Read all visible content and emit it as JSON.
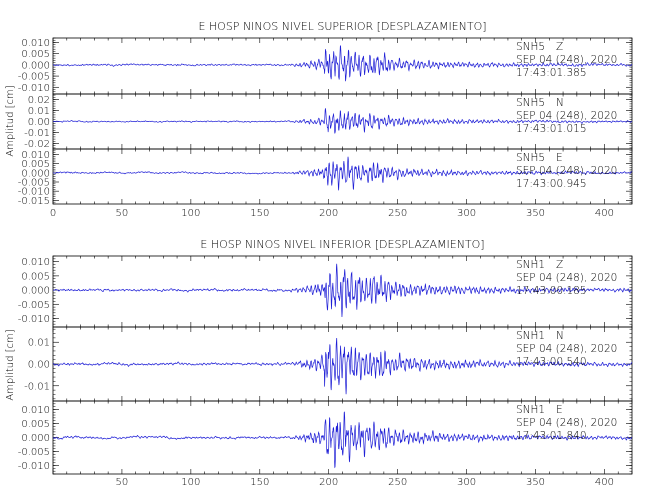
{
  "chart_data": [
    {
      "type": "line",
      "title": "E HOSP NINOS NIVEL SUPERIOR [DESPLAZAMIENTO]",
      "ylabel": "Amplitud [cm]",
      "xlim": [
        0,
        420
      ],
      "x_ticks": [
        "0",
        "50",
        "100",
        "150",
        "200",
        "250",
        "300",
        "350",
        "400"
      ],
      "traces": [
        {
          "station": "SNH5",
          "component": "Z",
          "date": "SEP 04 (248), 2020",
          "time": "17:43:01.385",
          "ylim": [
            -0.013,
            0.012
          ],
          "y_ticks": [
            {
              "v": 0.01,
              "t": "0.010"
            },
            {
              "v": 0.005,
              "t": "0.005"
            },
            {
              "v": 0.0,
              "t": "0.000"
            },
            {
              "v": -0.005,
              "t": "-0.005"
            },
            {
              "v": -0.01,
              "t": "-0.010"
            }
          ],
          "peak": 0.01,
          "seed": 11
        },
        {
          "station": "SNH5",
          "component": "N",
          "date": "SEP 04 (248), 2020",
          "time": "17:43:01.015",
          "ylim": [
            -0.025,
            0.025
          ],
          "y_ticks": [
            {
              "v": 0.02,
              "t": "0.02"
            },
            {
              "v": 0.01,
              "t": "0.01"
            },
            {
              "v": 0.0,
              "t": "0.00"
            },
            {
              "v": -0.01,
              "t": "-0.01"
            },
            {
              "v": -0.02,
              "t": "-0.02"
            }
          ],
          "peak": 0.015,
          "seed": 23
        },
        {
          "station": "SNH5",
          "component": "E",
          "date": "SEP 04 (248), 2020",
          "time": "17:43:00.945",
          "ylim": [
            -0.017,
            0.013
          ],
          "y_ticks": [
            {
              "v": 0.01,
              "t": "0.010"
            },
            {
              "v": 0.005,
              "t": "0.005"
            },
            {
              "v": 0.0,
              "t": "0.000"
            },
            {
              "v": -0.005,
              "t": "-0.005"
            },
            {
              "v": -0.01,
              "t": "-0.010"
            },
            {
              "v": -0.015,
              "t": "-0.015"
            }
          ],
          "peak": 0.011,
          "seed": 37
        }
      ]
    },
    {
      "type": "line",
      "title": "E HOSP NINOS NIVEL INFERIOR [DESPLAZAMIENTO]",
      "ylabel": "Amplitud [cm]",
      "xlim": [
        0,
        420
      ],
      "x_ticks": [
        "50",
        "100",
        "150",
        "200",
        "250",
        "300",
        "350",
        "400"
      ],
      "traces": [
        {
          "station": "SNH1",
          "component": "Z",
          "date": "SEP 04 (248), 2020",
          "time": "17:43:00.185",
          "ylim": [
            -0.013,
            0.012
          ],
          "y_ticks": [
            {
              "v": 0.01,
              "t": "0.010"
            },
            {
              "v": 0.005,
              "t": "0.005"
            },
            {
              "v": 0.0,
              "t": "0.000"
            },
            {
              "v": -0.005,
              "t": "-0.005"
            },
            {
              "v": -0.01,
              "t": "-0.010"
            }
          ],
          "peak": 0.011,
          "seed": 41
        },
        {
          "station": "SNH1",
          "component": "N",
          "date": "SEP 04 (248), 2020",
          "time": "17:43:00.540",
          "ylim": [
            -0.017,
            0.017
          ],
          "y_ticks": [
            {
              "v": 0.01,
              "t": "0.01"
            },
            {
              "v": 0.0,
              "t": "0.00"
            },
            {
              "v": -0.01,
              "t": "-0.01"
            }
          ],
          "peak": 0.015,
          "seed": 53
        },
        {
          "station": "SNH1",
          "component": "E",
          "date": "SEP 04 (248), 2020",
          "time": "17:43:01.840",
          "ylim": [
            -0.013,
            0.013
          ],
          "y_ticks": [
            {
              "v": 0.01,
              "t": "0.010"
            },
            {
              "v": 0.005,
              "t": "0.005"
            },
            {
              "v": 0.0,
              "t": "0.000"
            },
            {
              "v": -0.005,
              "t": "-0.005"
            },
            {
              "v": -0.01,
              "t": "-0.010"
            }
          ],
          "peak": 0.011,
          "seed": 67
        }
      ]
    }
  ],
  "colors": {
    "trace": "#1f1fd6",
    "axes": "#000000"
  }
}
